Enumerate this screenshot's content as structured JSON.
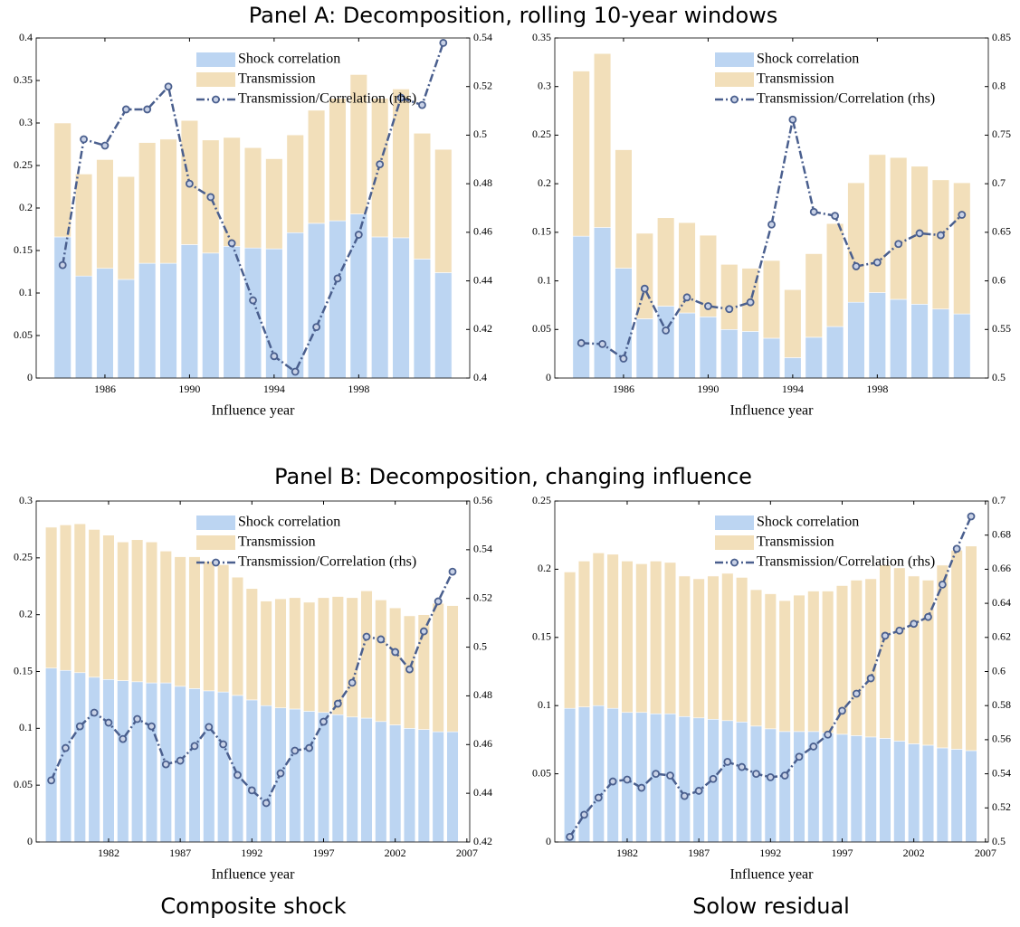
{
  "panel_titles": [
    "Panel A: Decomposition, rolling 10-year windows",
    "Panel B: Decomposition, changing influence"
  ],
  "captions": [
    "Composite shock",
    "Solow residual"
  ],
  "chart_data": [
    {
      "type": "bar",
      "stacked": true,
      "x_label": "Influence year",
      "legend": "upper right",
      "x": [
        1984,
        1985,
        1986,
        1987,
        1988,
        1989,
        1990,
        1991,
        1992,
        1993,
        1994,
        1995,
        1996,
        1997,
        1998,
        1999,
        2000,
        2001,
        2002
      ],
      "xlim": [
        1982.75,
        2003.25
      ],
      "xticks": [
        1986,
        1990,
        1994,
        1998
      ],
      "ylim": [
        0,
        0.4
      ],
      "yticks": [
        0,
        0.05,
        0.1,
        0.15,
        0.2,
        0.25,
        0.3,
        0.35,
        0.4
      ],
      "y2lim": [
        0.4,
        0.54
      ],
      "y2ticks": [
        0.4,
        0.42,
        0.44,
        0.46,
        0.48,
        0.5,
        0.52,
        0.54
      ],
      "series": [
        {
          "name": "Shock correlation",
          "type": "bar",
          "color": "#bcd5f2",
          "values": [
            0.166,
            0.12,
            0.129,
            0.116,
            0.135,
            0.135,
            0.157,
            0.147,
            0.155,
            0.153,
            0.152,
            0.171,
            0.182,
            0.185,
            0.193,
            0.166,
            0.165,
            0.14,
            0.124
          ]
        },
        {
          "name": "Transmission",
          "type": "bar",
          "color": "#f2dfba",
          "values": [
            0.134,
            0.12,
            0.128,
            0.121,
            0.142,
            0.146,
            0.146,
            0.133,
            0.128,
            0.118,
            0.106,
            0.115,
            0.133,
            0.144,
            0.164,
            0.163,
            0.175,
            0.148,
            0.145
          ]
        },
        {
          "name": "Transmission/Correlation (rhs)",
          "type": "line",
          "axis": "y2",
          "color": "#4a5f8e",
          "values": [
            0.4465,
            0.4983,
            0.4957,
            0.5106,
            0.5106,
            0.52,
            0.48,
            0.4745,
            0.4555,
            0.432,
            0.409,
            0.4026,
            0.421,
            0.441,
            0.459,
            0.488,
            0.5154,
            0.5124,
            0.538
          ]
        }
      ]
    },
    {
      "type": "bar",
      "stacked": true,
      "x_label": "Influence year",
      "legend": "upper right",
      "x": [
        1984,
        1985,
        1986,
        1987,
        1988,
        1989,
        1990,
        1991,
        1992,
        1993,
        1994,
        1995,
        1996,
        1997,
        1998,
        1999,
        2000,
        2001,
        2002
      ],
      "xlim": [
        1982.75,
        2003.25
      ],
      "xticks": [
        1986,
        1990,
        1994,
        1998
      ],
      "ylim": [
        0,
        0.35
      ],
      "yticks": [
        0,
        0.05,
        0.1,
        0.15,
        0.2,
        0.25,
        0.3,
        0.35
      ],
      "y2lim": [
        0.5,
        0.85
      ],
      "y2ticks": [
        0.5,
        0.55,
        0.6,
        0.65,
        0.7,
        0.75,
        0.8,
        0.85
      ],
      "series": [
        {
          "name": "Shock correlation",
          "type": "bar",
          "color": "#bcd5f2",
          "values": [
            0.146,
            0.155,
            0.113,
            0.061,
            0.074,
            0.067,
            0.063,
            0.05,
            0.048,
            0.041,
            0.021,
            0.042,
            0.053,
            0.078,
            0.088,
            0.081,
            0.076,
            0.071,
            0.066
          ]
        },
        {
          "name": "Transmission",
          "type": "bar",
          "color": "#f2dfba",
          "values": [
            0.17,
            0.179,
            0.122,
            0.088,
            0.091,
            0.093,
            0.084,
            0.067,
            0.065,
            0.08,
            0.07,
            0.086,
            0.106,
            0.123,
            0.142,
            0.146,
            0.142,
            0.133,
            0.135
          ]
        },
        {
          "name": "Transmission/Correlation (rhs)",
          "type": "line",
          "axis": "y2",
          "color": "#4a5f8e",
          "values": [
            0.536,
            0.535,
            0.52,
            0.592,
            0.549,
            0.583,
            0.574,
            0.571,
            0.578,
            0.658,
            0.766,
            0.671,
            0.667,
            0.615,
            0.619,
            0.638,
            0.649,
            0.647,
            0.668
          ]
        }
      ]
    },
    {
      "type": "bar",
      "stacked": true,
      "x_label": "Influence year",
      "legend": "upper right",
      "x": [
        1978,
        1979,
        1980,
        1981,
        1982,
        1983,
        1984,
        1985,
        1986,
        1987,
        1988,
        1989,
        1990,
        1991,
        1992,
        1993,
        1994,
        1995,
        1996,
        1997,
        1998,
        1999,
        2000,
        2001,
        2002,
        2003,
        2004,
        2005,
        2006
      ],
      "xlim": [
        1976.95,
        2007.2
      ],
      "xticks": [
        1982,
        1987,
        1992,
        1997,
        2002,
        2007
      ],
      "ylim": [
        0,
        0.3
      ],
      "yticks": [
        0,
        0.05,
        0.1,
        0.15,
        0.2,
        0.25,
        0.3
      ],
      "y2lim": [
        0.42,
        0.56
      ],
      "y2ticks": [
        0.42,
        0.44,
        0.46,
        0.48,
        0.5,
        0.52,
        0.54,
        0.56
      ],
      "series": [
        {
          "name": "Shock correlation",
          "type": "bar",
          "color": "#bcd5f2",
          "values": [
            0.153,
            0.151,
            0.149,
            0.145,
            0.143,
            0.142,
            0.141,
            0.14,
            0.14,
            0.137,
            0.135,
            0.133,
            0.132,
            0.129,
            0.125,
            0.12,
            0.118,
            0.117,
            0.115,
            0.114,
            0.112,
            0.11,
            0.109,
            0.106,
            0.103,
            0.1,
            0.099,
            0.097,
            0.097
          ]
        },
        {
          "name": "Transmission",
          "type": "bar",
          "color": "#f2dfba",
          "values": [
            0.124,
            0.128,
            0.131,
            0.13,
            0.127,
            0.122,
            0.125,
            0.124,
            0.116,
            0.114,
            0.116,
            0.114,
            0.112,
            0.104,
            0.098,
            0.092,
            0.096,
            0.098,
            0.096,
            0.101,
            0.104,
            0.105,
            0.112,
            0.107,
            0.103,
            0.099,
            0.101,
            0.113,
            0.111
          ]
        },
        {
          "name": "Transmission/Correlation (rhs)",
          "type": "line",
          "axis": "y2",
          "color": "#4a5f8e",
          "values": [
            0.4453,
            0.4586,
            0.4675,
            0.4731,
            0.469,
            0.4623,
            0.4705,
            0.4675,
            0.4519,
            0.4534,
            0.4594,
            0.4672,
            0.4601,
            0.4475,
            0.4412,
            0.436,
            0.4482,
            0.4575,
            0.4586,
            0.4694,
            0.4768,
            0.4854,
            0.5043,
            0.5032,
            0.498,
            0.4909,
            0.5065,
            0.5188,
            0.531
          ]
        }
      ]
    },
    {
      "type": "bar",
      "stacked": true,
      "x_label": "Influence year",
      "legend": "upper right",
      "x": [
        1978,
        1979,
        1980,
        1981,
        1982,
        1983,
        1984,
        1985,
        1986,
        1987,
        1988,
        1989,
        1990,
        1991,
        1992,
        1993,
        1994,
        1995,
        1996,
        1997,
        1998,
        1999,
        2000,
        2001,
        2002,
        2003,
        2004,
        2005,
        2006
      ],
      "xlim": [
        1976.95,
        2007.2
      ],
      "xticks": [
        1982,
        1987,
        1992,
        1997,
        2002,
        2007
      ],
      "ylim": [
        0,
        0.25
      ],
      "yticks": [
        0,
        0.05,
        0.1,
        0.15,
        0.2,
        0.25
      ],
      "y2lim": [
        0.5,
        0.7
      ],
      "y2ticks": [
        0.5,
        0.52,
        0.54,
        0.56,
        0.58,
        0.6,
        0.62,
        0.64,
        0.66,
        0.68,
        0.7
      ],
      "series": [
        {
          "name": "Shock correlation",
          "type": "bar",
          "color": "#bcd5f2",
          "values": [
            0.098,
            0.099,
            0.1,
            0.098,
            0.095,
            0.095,
            0.094,
            0.094,
            0.092,
            0.091,
            0.09,
            0.089,
            0.088,
            0.085,
            0.083,
            0.081,
            0.081,
            0.081,
            0.08,
            0.079,
            0.078,
            0.077,
            0.076,
            0.074,
            0.072,
            0.071,
            0.069,
            0.068,
            0.067
          ]
        },
        {
          "name": "Transmission",
          "type": "bar",
          "color": "#f2dfba",
          "values": [
            0.1,
            0.107,
            0.112,
            0.113,
            0.111,
            0.109,
            0.112,
            0.111,
            0.103,
            0.102,
            0.105,
            0.108,
            0.106,
            0.1,
            0.099,
            0.096,
            0.1,
            0.103,
            0.104,
            0.109,
            0.114,
            0.116,
            0.127,
            0.127,
            0.123,
            0.121,
            0.134,
            0.146,
            0.15
          ]
        },
        {
          "name": "Transmission/Correlation (rhs)",
          "type": "line",
          "axis": "y2",
          "color": "#4a5f8e",
          "values": [
            0.503,
            0.516,
            0.526,
            0.5355,
            0.5366,
            0.5318,
            0.54,
            0.539,
            0.527,
            0.53,
            0.537,
            0.547,
            0.544,
            0.54,
            0.538,
            0.539,
            0.55,
            0.556,
            0.563,
            0.577,
            0.587,
            0.596,
            0.621,
            0.624,
            0.628,
            0.632,
            0.651,
            0.672,
            0.691
          ]
        }
      ]
    }
  ]
}
